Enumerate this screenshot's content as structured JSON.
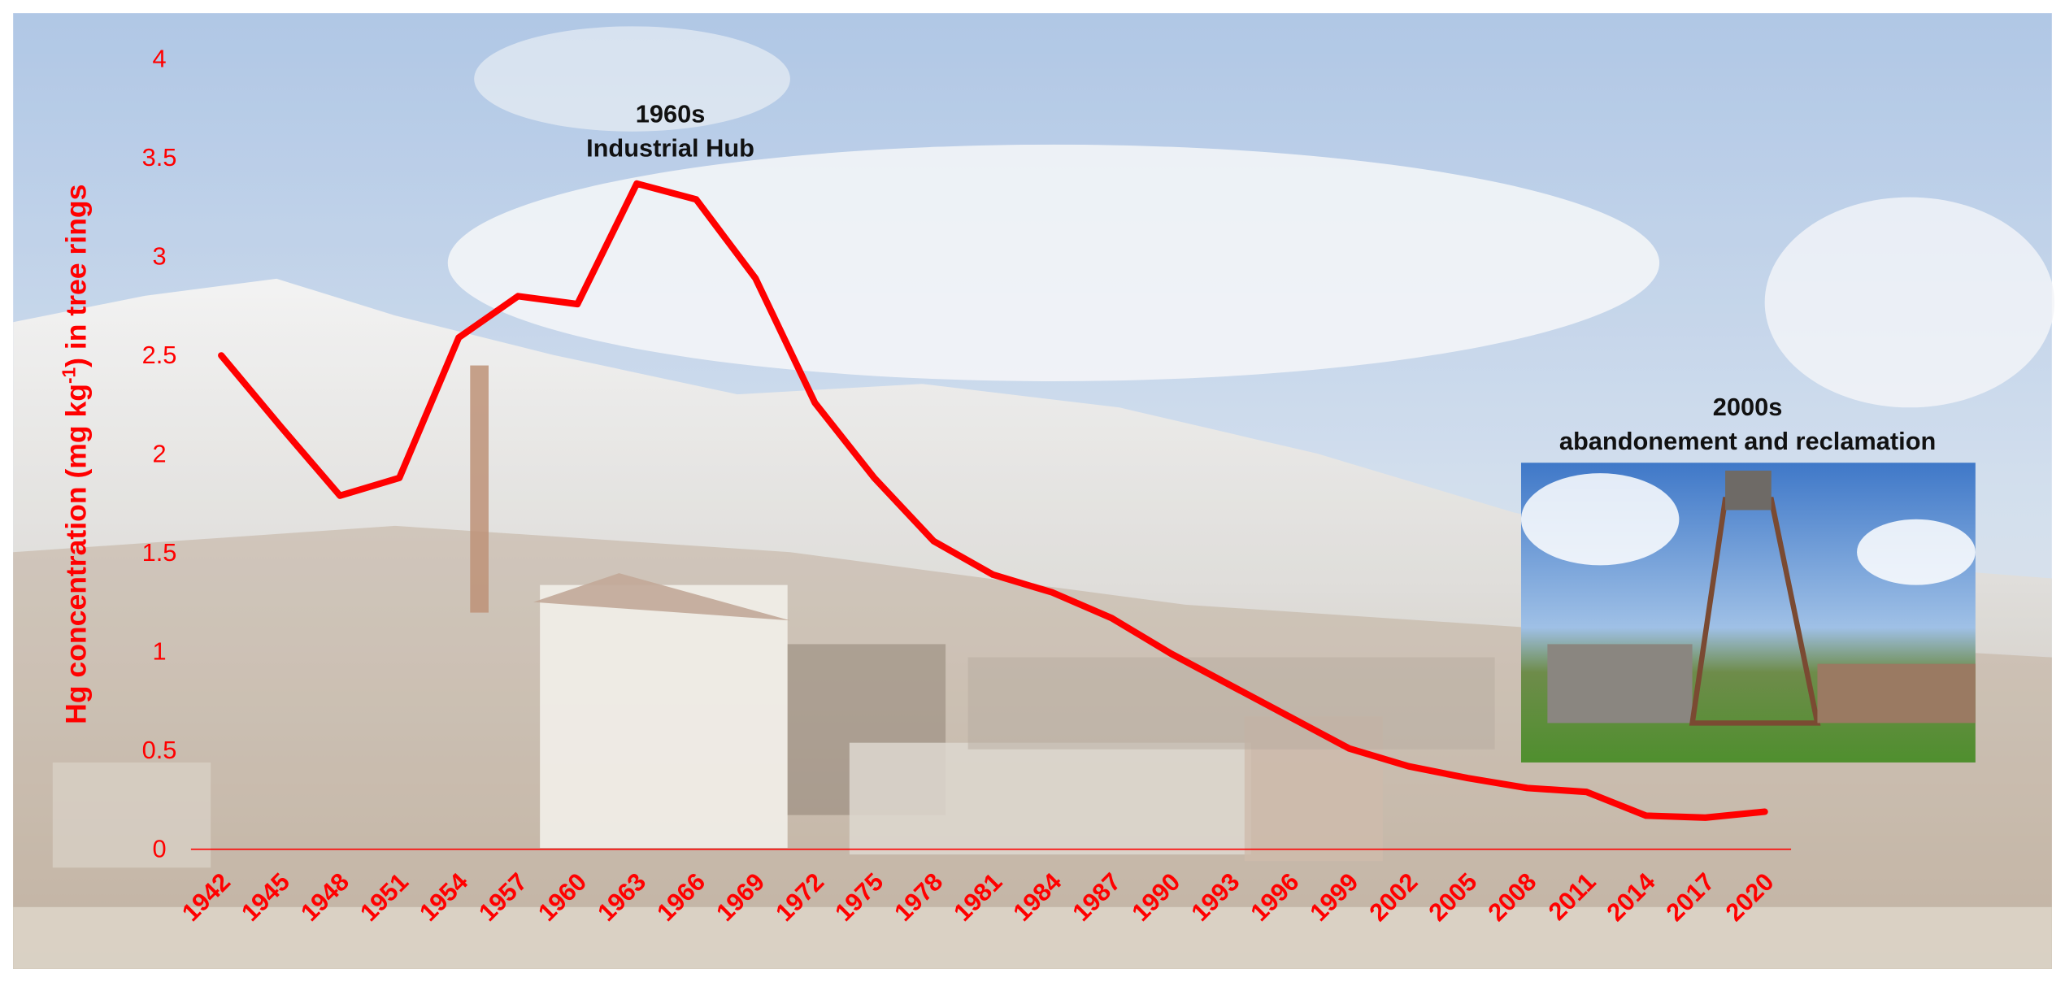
{
  "chart_data": {
    "type": "line",
    "ylabel": "Hg concentration (mg kg",
    "ylabel_sup": "-1",
    "ylabel_end": ") in tree rings",
    "annotations": [
      {
        "lines": [
          "1960s",
          "Industrial Hub"
        ]
      },
      {
        "lines": [
          "2000s",
          "abandonement and reclamation"
        ]
      }
    ],
    "categories": [
      "1942",
      "1945",
      "1948",
      "1951",
      "1954",
      "1957",
      "1960",
      "1963",
      "1966",
      "1969",
      "1972",
      "1975",
      "1978",
      "1981",
      "1984",
      "1987",
      "1990",
      "1993",
      "1996",
      "1999",
      "2002",
      "2005",
      "2008",
      "2011",
      "2014",
      "2017",
      "2020"
    ],
    "values": [
      2.5,
      2.14,
      1.79,
      1.88,
      2.59,
      2.8,
      2.76,
      3.37,
      3.29,
      2.89,
      2.26,
      1.88,
      1.56,
      1.39,
      1.3,
      1.17,
      0.99,
      0.83,
      0.67,
      0.51,
      0.42,
      0.36,
      0.31,
      0.29,
      0.17,
      0.16,
      0.19
    ],
    "color": "#ff0000",
    "ylim": [
      0,
      4
    ],
    "yticks": [
      0,
      0.5,
      1,
      1.5,
      2,
      2.5,
      3,
      3.5,
      4
    ],
    "zero_line": true
  }
}
